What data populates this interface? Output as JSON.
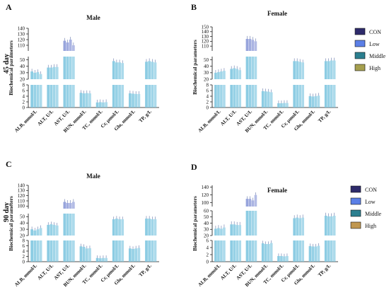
{
  "figure": {
    "row_labels": [
      "45 day",
      "90 day"
    ],
    "legend_top": [
      "CON",
      "Low",
      "Middle",
      "High"
    ],
    "legend_bottom": [
      "CON",
      "Low",
      "Middle",
      "High"
    ]
  },
  "colors": {
    "CON": "#2e2b6b",
    "Low": "#5b7fe6",
    "Middle": "#2b7f8f",
    "High_A": "#a59f4e",
    "High_C": "#c0974f",
    "bar_top": "#8c9ad8",
    "bar_bottom": "#7fc7e0"
  },
  "chart_data": [
    {
      "panel": "A",
      "title": "Male",
      "type": "bar",
      "ylabel": "Biochemical parameters",
      "categories": [
        "ALB, mmol/L",
        "ALT, U/L",
        "AST, U/L",
        "BUN, mmol/L",
        "TC, mmol/L",
        "Cr, μmol/L",
        "Glu, mmol/L",
        "TP, g/L"
      ],
      "axis_segments": [
        {
          "range": [
            0,
            8
          ],
          "ticks": [
            0,
            2,
            4,
            6,
            8
          ]
        },
        {
          "range": [
            20,
            55
          ],
          "ticks": [
            20,
            30,
            40,
            50
          ]
        },
        {
          "range": [
            100,
            140
          ],
          "ticks": [
            110,
            120,
            130,
            140
          ]
        }
      ],
      "series": [
        {
          "name": "CON",
          "values": [
            32,
            38,
            118,
            5.2,
            1.8,
            48,
            5.0,
            47
          ]
        },
        {
          "name": "Low",
          "values": [
            30,
            38,
            115,
            5.0,
            1.9,
            46,
            4.9,
            48
          ]
        },
        {
          "name": "Middle",
          "values": [
            31,
            39,
            120,
            5.1,
            1.8,
            46,
            4.8,
            47
          ]
        },
        {
          "name": "High",
          "values": [
            28,
            39,
            110,
            5.0,
            1.9,
            45,
            4.8,
            46
          ]
        }
      ]
    },
    {
      "panel": "B",
      "title": "Female",
      "type": "bar",
      "ylabel": "Biochemical parameters",
      "categories": [
        "ALB, mmol/L",
        "ALT, U/L",
        "AST, U/L",
        "BUN, mmol/L",
        "TC, mmol/L",
        "Cr, μmol/L",
        "Glu, mmol/L",
        "TP, g/L"
      ],
      "axis_segments": [
        {
          "range": [
            0,
            8
          ],
          "ticks": [
            0,
            2,
            4,
            6,
            8
          ]
        },
        {
          "range": [
            20,
            55
          ],
          "ticks": [
            20,
            30,
            40,
            50
          ]
        },
        {
          "range": [
            100,
            150
          ],
          "ticks": [
            110,
            120,
            130,
            140,
            150
          ]
        }
      ],
      "series": [
        {
          "name": "CON",
          "values": [
            30,
            36,
            125,
            5.8,
            1.5,
            48,
            4.0,
            48
          ]
        },
        {
          "name": "Low",
          "values": [
            31,
            37,
            125,
            5.7,
            1.5,
            48,
            3.9,
            48
          ]
        },
        {
          "name": "Middle",
          "values": [
            32,
            36,
            123,
            5.6,
            1.6,
            47,
            4.0,
            49
          ]
        },
        {
          "name": "High",
          "values": [
            33,
            34,
            120,
            5.4,
            1.6,
            46,
            4.2,
            49
          ]
        }
      ]
    },
    {
      "panel": "C",
      "title": "Male",
      "type": "bar",
      "ylabel": "Biochemical parameters",
      "categories": [
        "ALB, mmol/L",
        "ALT, U/L",
        "AST, U/L",
        "BUN, mmol/L",
        "TC, mmol/L",
        "Cr, μmol/L",
        "Glu, mmol/L",
        "TP, g/L"
      ],
      "axis_segments": [
        {
          "range": [
            0,
            8
          ],
          "ticks": [
            0,
            2,
            4,
            6,
            8
          ]
        },
        {
          "range": [
            20,
            55
          ],
          "ticks": [
            20,
            30,
            40,
            50
          ]
        },
        {
          "range": [
            95,
            140
          ],
          "ticks": [
            100,
            110,
            120,
            130,
            140
          ]
        }
      ],
      "series": [
        {
          "name": "CON",
          "values": [
            30,
            37,
            108,
            5.8,
            1.4,
            46,
            5.0,
            47
          ]
        },
        {
          "name": "Low",
          "values": [
            28,
            38,
            106,
            5.6,
            1.3,
            47,
            4.8,
            47
          ]
        },
        {
          "name": "Middle",
          "values": [
            30,
            37,
            106,
            5.0,
            1.4,
            46,
            5.0,
            46
          ]
        },
        {
          "name": "High",
          "values": [
            32,
            36,
            108,
            5.1,
            1.4,
            46,
            5.2,
            46
          ]
        }
      ]
    },
    {
      "panel": "D",
      "title": "Female",
      "type": "bar",
      "ylabel": "Biochemical parameters",
      "categories": [
        "ALB, mmol/L",
        "ALT, U/L",
        "AST, U/L",
        "BUN, mmol/L",
        "TC, mmol/L",
        "Cr, μmol/L",
        "Glu, mmol/L",
        "TP, g/L"
      ],
      "axis_segments": [
        {
          "range": [
            0,
            6
          ],
          "ticks": [
            0,
            2,
            4,
            6
          ]
        },
        {
          "range": [
            20,
            60
          ],
          "ticks": [
            20,
            30,
            40,
            50,
            60
          ]
        },
        {
          "range": [
            90,
            145
          ],
          "ticks": [
            100,
            120,
            140
          ]
        }
      ],
      "series": [
        {
          "name": "CON",
          "values": [
            31,
            38,
            110,
            5.2,
            1.6,
            48,
            4.4,
            52
          ]
        },
        {
          "name": "Low",
          "values": [
            32,
            38,
            110,
            5.0,
            1.6,
            49,
            4.3,
            51
          ]
        },
        {
          "name": "Middle",
          "values": [
            31,
            37,
            106,
            5.0,
            1.5,
            48,
            4.3,
            51
          ]
        },
        {
          "name": "High",
          "values": [
            33,
            37,
            120,
            5.3,
            1.6,
            49,
            4.5,
            52
          ]
        }
      ]
    }
  ]
}
